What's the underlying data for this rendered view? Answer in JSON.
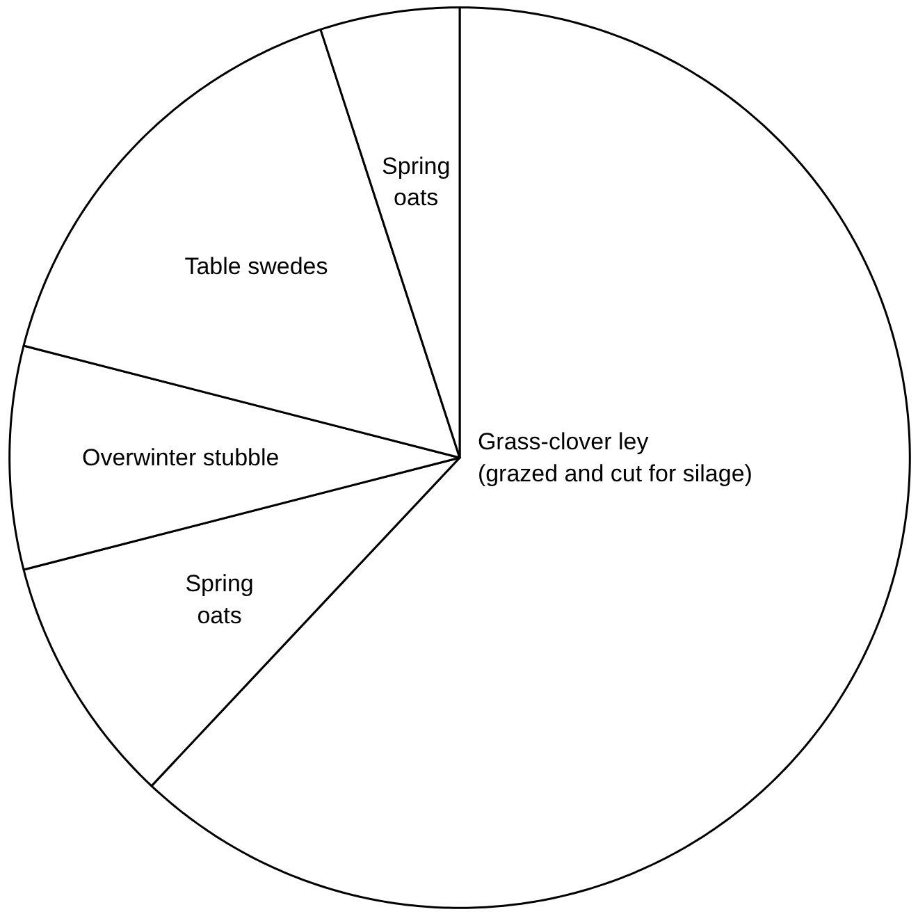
{
  "chart_data": {
    "type": "pie",
    "categories": [
      "Grass-clover ley\n(grazed and cut for silage)",
      "Spring\noats",
      "Overwinter stubble",
      "Table swedes",
      "Spring\noats"
    ],
    "values": [
      62,
      9,
      8,
      16,
      5
    ],
    "colors": [
      "#ffffff",
      "#ffffff",
      "#ffffff",
      "#ffffff",
      "#ffffff"
    ]
  }
}
